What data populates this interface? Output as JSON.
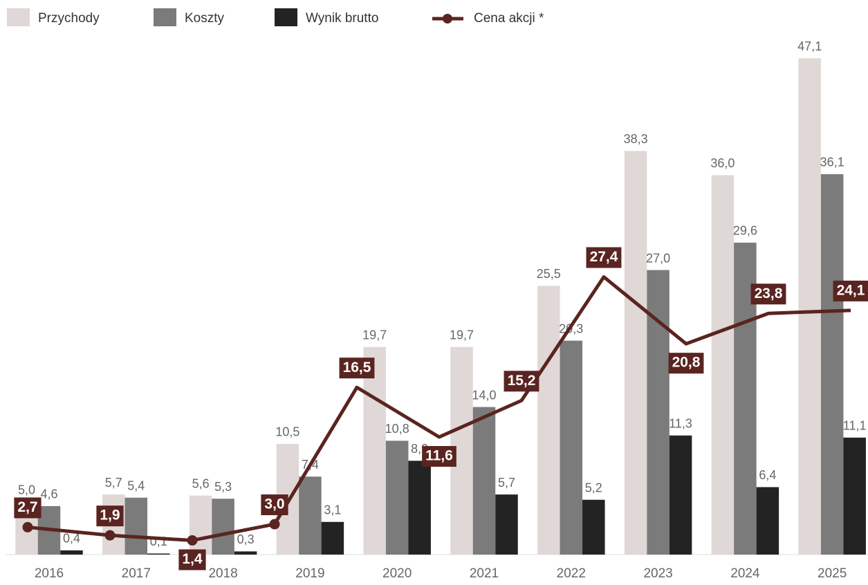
{
  "chart_data": [
    {
      "type": "bar",
      "categories": [
        "2016",
        "2017",
        "2018",
        "2019",
        "2020",
        "2021",
        "2022",
        "2023",
        "2024",
        "2025"
      ],
      "series": [
        {
          "name": "Przychody",
          "color": "#e0d8d6",
          "values": [
            5.0,
            5.7,
            5.6,
            10.5,
            19.7,
            19.7,
            25.5,
            38.3,
            36.0,
            47.1
          ],
          "value_labels": [
            "5,0",
            "5,7",
            "5,6",
            "10,5",
            "19,7",
            "19,7",
            "25,5",
            "38,3",
            "36,0",
            "47,1"
          ]
        },
        {
          "name": "Koszty",
          "color": "#7b7b7b",
          "values": [
            4.6,
            5.4,
            5.3,
            7.4,
            10.8,
            14.0,
            20.3,
            27.0,
            29.6,
            36.1
          ],
          "value_labels": [
            "4,6",
            "5,4",
            "5,3",
            "7,4",
            "10,8",
            "14,0",
            "20,3",
            "27,0",
            "29,6",
            "36,1"
          ]
        },
        {
          "name": "Wynik brutto",
          "color": "#232323",
          "values": [
            0.4,
            0.1,
            0.3,
            3.1,
            8.9,
            5.7,
            5.2,
            11.3,
            6.4,
            11.1
          ],
          "value_labels": [
            "0,4",
            "0,1",
            "0,3",
            "3,1",
            "8,9",
            "5,7",
            "5,2",
            "11,3",
            "6,4",
            "11,1"
          ]
        }
      ],
      "ylim": [
        0,
        50
      ]
    },
    {
      "type": "line",
      "categories": [
        null,
        null,
        null,
        null,
        null,
        null,
        null,
        null,
        null,
        null,
        null
      ],
      "series": [
        {
          "name": "Cena akcji *",
          "color": "#5a2420",
          "values": [
            2.7,
            1.9,
            1.4,
            3.0,
            16.5,
            11.6,
            15.2,
            27.4,
            20.8,
            23.8,
            24.1
          ],
          "value_labels": [
            "2,7",
            "1,9",
            "1,4",
            "3,0",
            "16,5",
            "11,6",
            "15,2",
            "27,4",
            "20,8",
            "23,8",
            "24,1"
          ]
        }
      ],
      "ylim": [
        0,
        52
      ]
    }
  ]
}
